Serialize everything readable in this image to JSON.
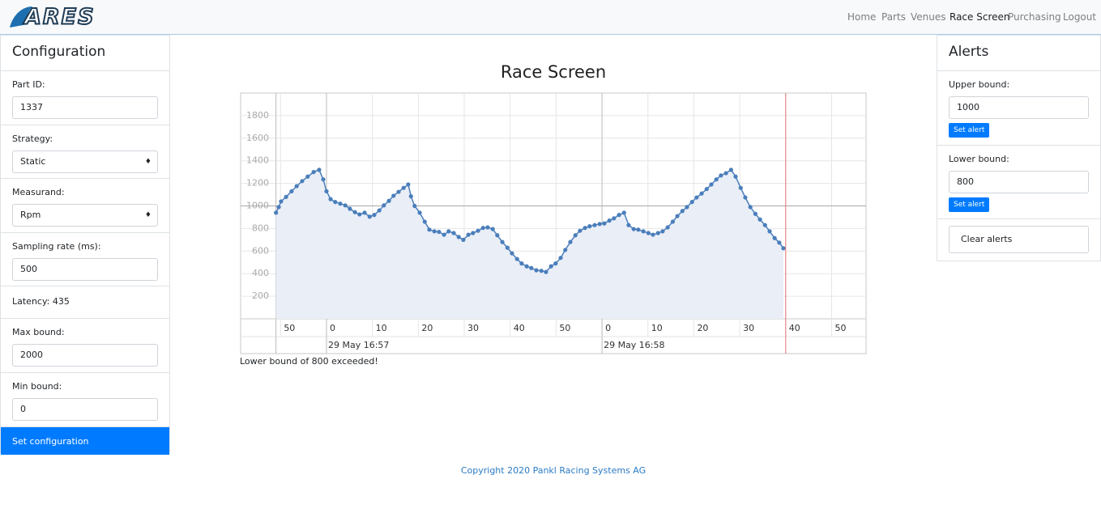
{
  "nav": {
    "brand": "ARES",
    "links": [
      "Home",
      "Parts",
      "Venues",
      "Race Screen",
      "Purchasing",
      "Logout"
    ],
    "active": 3
  },
  "configuration": {
    "title": "Configuration",
    "fields": [
      {
        "label": "Part ID:",
        "value": "1337"
      },
      {
        "label": "Strategy:",
        "value": "Static"
      },
      {
        "label": "Measurand:",
        "value": "Rpm"
      },
      {
        "label": "Sampling rate (ms):",
        "value": "500"
      },
      {
        "label": "Max bound:",
        "value": "2000"
      },
      {
        "label": "Min bound:",
        "value": "0"
      }
    ],
    "latency": "Latency: 435",
    "button": "Set configuration"
  },
  "alerts": {
    "title": "Alerts",
    "upper_label": "Upper bound:",
    "upper_value": 1000,
    "lower_label": "Lower bound:",
    "lower_value": 800,
    "set_alert": "Set alert",
    "clear": "Clear alerts"
  },
  "alert_message": "Lower bound of 800 exceeded!",
  "footer": "Copyright 2020 Pankl Racing Systems AG",
  "chart_data": {
    "type": "line",
    "title": "Race Screen",
    "color": "#4a7ebb",
    "fill": "#e9eef7",
    "x": [
      -11,
      -10.4,
      -9.9,
      -8.8,
      -7.6,
      -6.5,
      -5.3,
      -4.1,
      -2.8,
      -1.6,
      -0.7,
      0,
      0.9,
      1.9,
      3,
      4.1,
      5.1,
      6.2,
      7.2,
      8.3,
      9.4,
      10.4,
      11.5,
      12.5,
      13.6,
      14.6,
      15.7,
      16.8,
      17.8,
      18.4,
      19.2,
      20.3,
      21.4,
      22.4,
      23.5,
      24.5,
      25.6,
      26.6,
      27.7,
      28.8,
      29.8,
      30.9,
      31.9,
      33,
      34.1,
      35.1,
      36.2,
      37.2,
      38.3,
      39.4,
      40.4,
      41.5,
      42.5,
      43.6,
      44.6,
      45.7,
      46.8,
      47.8,
      48.9,
      49.9,
      51,
      52,
      53.1,
      54.2,
      55.2,
      56.3,
      57.3,
      58.4,
      59.5,
      60.5,
      61.6,
      62.6,
      63.7,
      64.8,
      65.8,
      66.9,
      67.9,
      69,
      70.1,
      71.1,
      72.2,
      73.2,
      74.3,
      75.4,
      76.4,
      77.5,
      78.5,
      79.6,
      80.6,
      81.7,
      82.8,
      83.8,
      84.9,
      85.9,
      87,
      88.1,
      89.1,
      90.2,
      91.2,
      92.3,
      93.4,
      94.4,
      95.5,
      96.5,
      97.6,
      98.6,
      99.5
    ],
    "values": [
      940,
      990,
      1040,
      1080,
      1130,
      1175,
      1220,
      1260,
      1300,
      1320,
      1235,
      1130,
      1060,
      1035,
      1020,
      1005,
      975,
      945,
      925,
      940,
      905,
      920,
      960,
      1005,
      1045,
      1090,
      1125,
      1160,
      1190,
      1085,
      1000,
      940,
      860,
      790,
      775,
      770,
      745,
      775,
      760,
      725,
      700,
      745,
      760,
      780,
      805,
      810,
      795,
      740,
      680,
      630,
      580,
      530,
      490,
      465,
      450,
      430,
      425,
      415,
      465,
      490,
      540,
      610,
      680,
      740,
      780,
      805,
      820,
      830,
      840,
      845,
      870,
      890,
      920,
      940,
      830,
      795,
      790,
      775,
      760,
      745,
      760,
      775,
      810,
      860,
      910,
      955,
      990,
      1035,
      1075,
      1110,
      1150,
      1190,
      1235,
      1270,
      1290,
      1320,
      1260,
      1160,
      1075,
      990,
      930,
      880,
      830,
      775,
      715,
      675,
      625
    ],
    "xlim": [
      -18.7,
      117.5
    ],
    "xticks": [
      {
        "value": -10,
        "label": "50"
      },
      0,
      10,
      20,
      30,
      40,
      50,
      {
        "value": 60,
        "label": "0"
      },
      {
        "value": 70,
        "label": "10"
      },
      {
        "value": 80,
        "label": "20"
      },
      {
        "value": 90,
        "label": "30"
      },
      {
        "value": 100,
        "label": "40"
      },
      {
        "value": 110,
        "label": "50"
      }
    ],
    "x_date_labels": [
      {
        "value": 0,
        "label": "29 May 16:57"
      },
      {
        "value": 60,
        "label": "29 May 16:58"
      }
    ],
    "cursor_x": 100,
    "ylim": [
      0,
      2000
    ],
    "yticks": [
      200,
      400,
      600,
      800,
      1000,
      1200,
      1400,
      1600,
      1800
    ],
    "grid": true
  }
}
